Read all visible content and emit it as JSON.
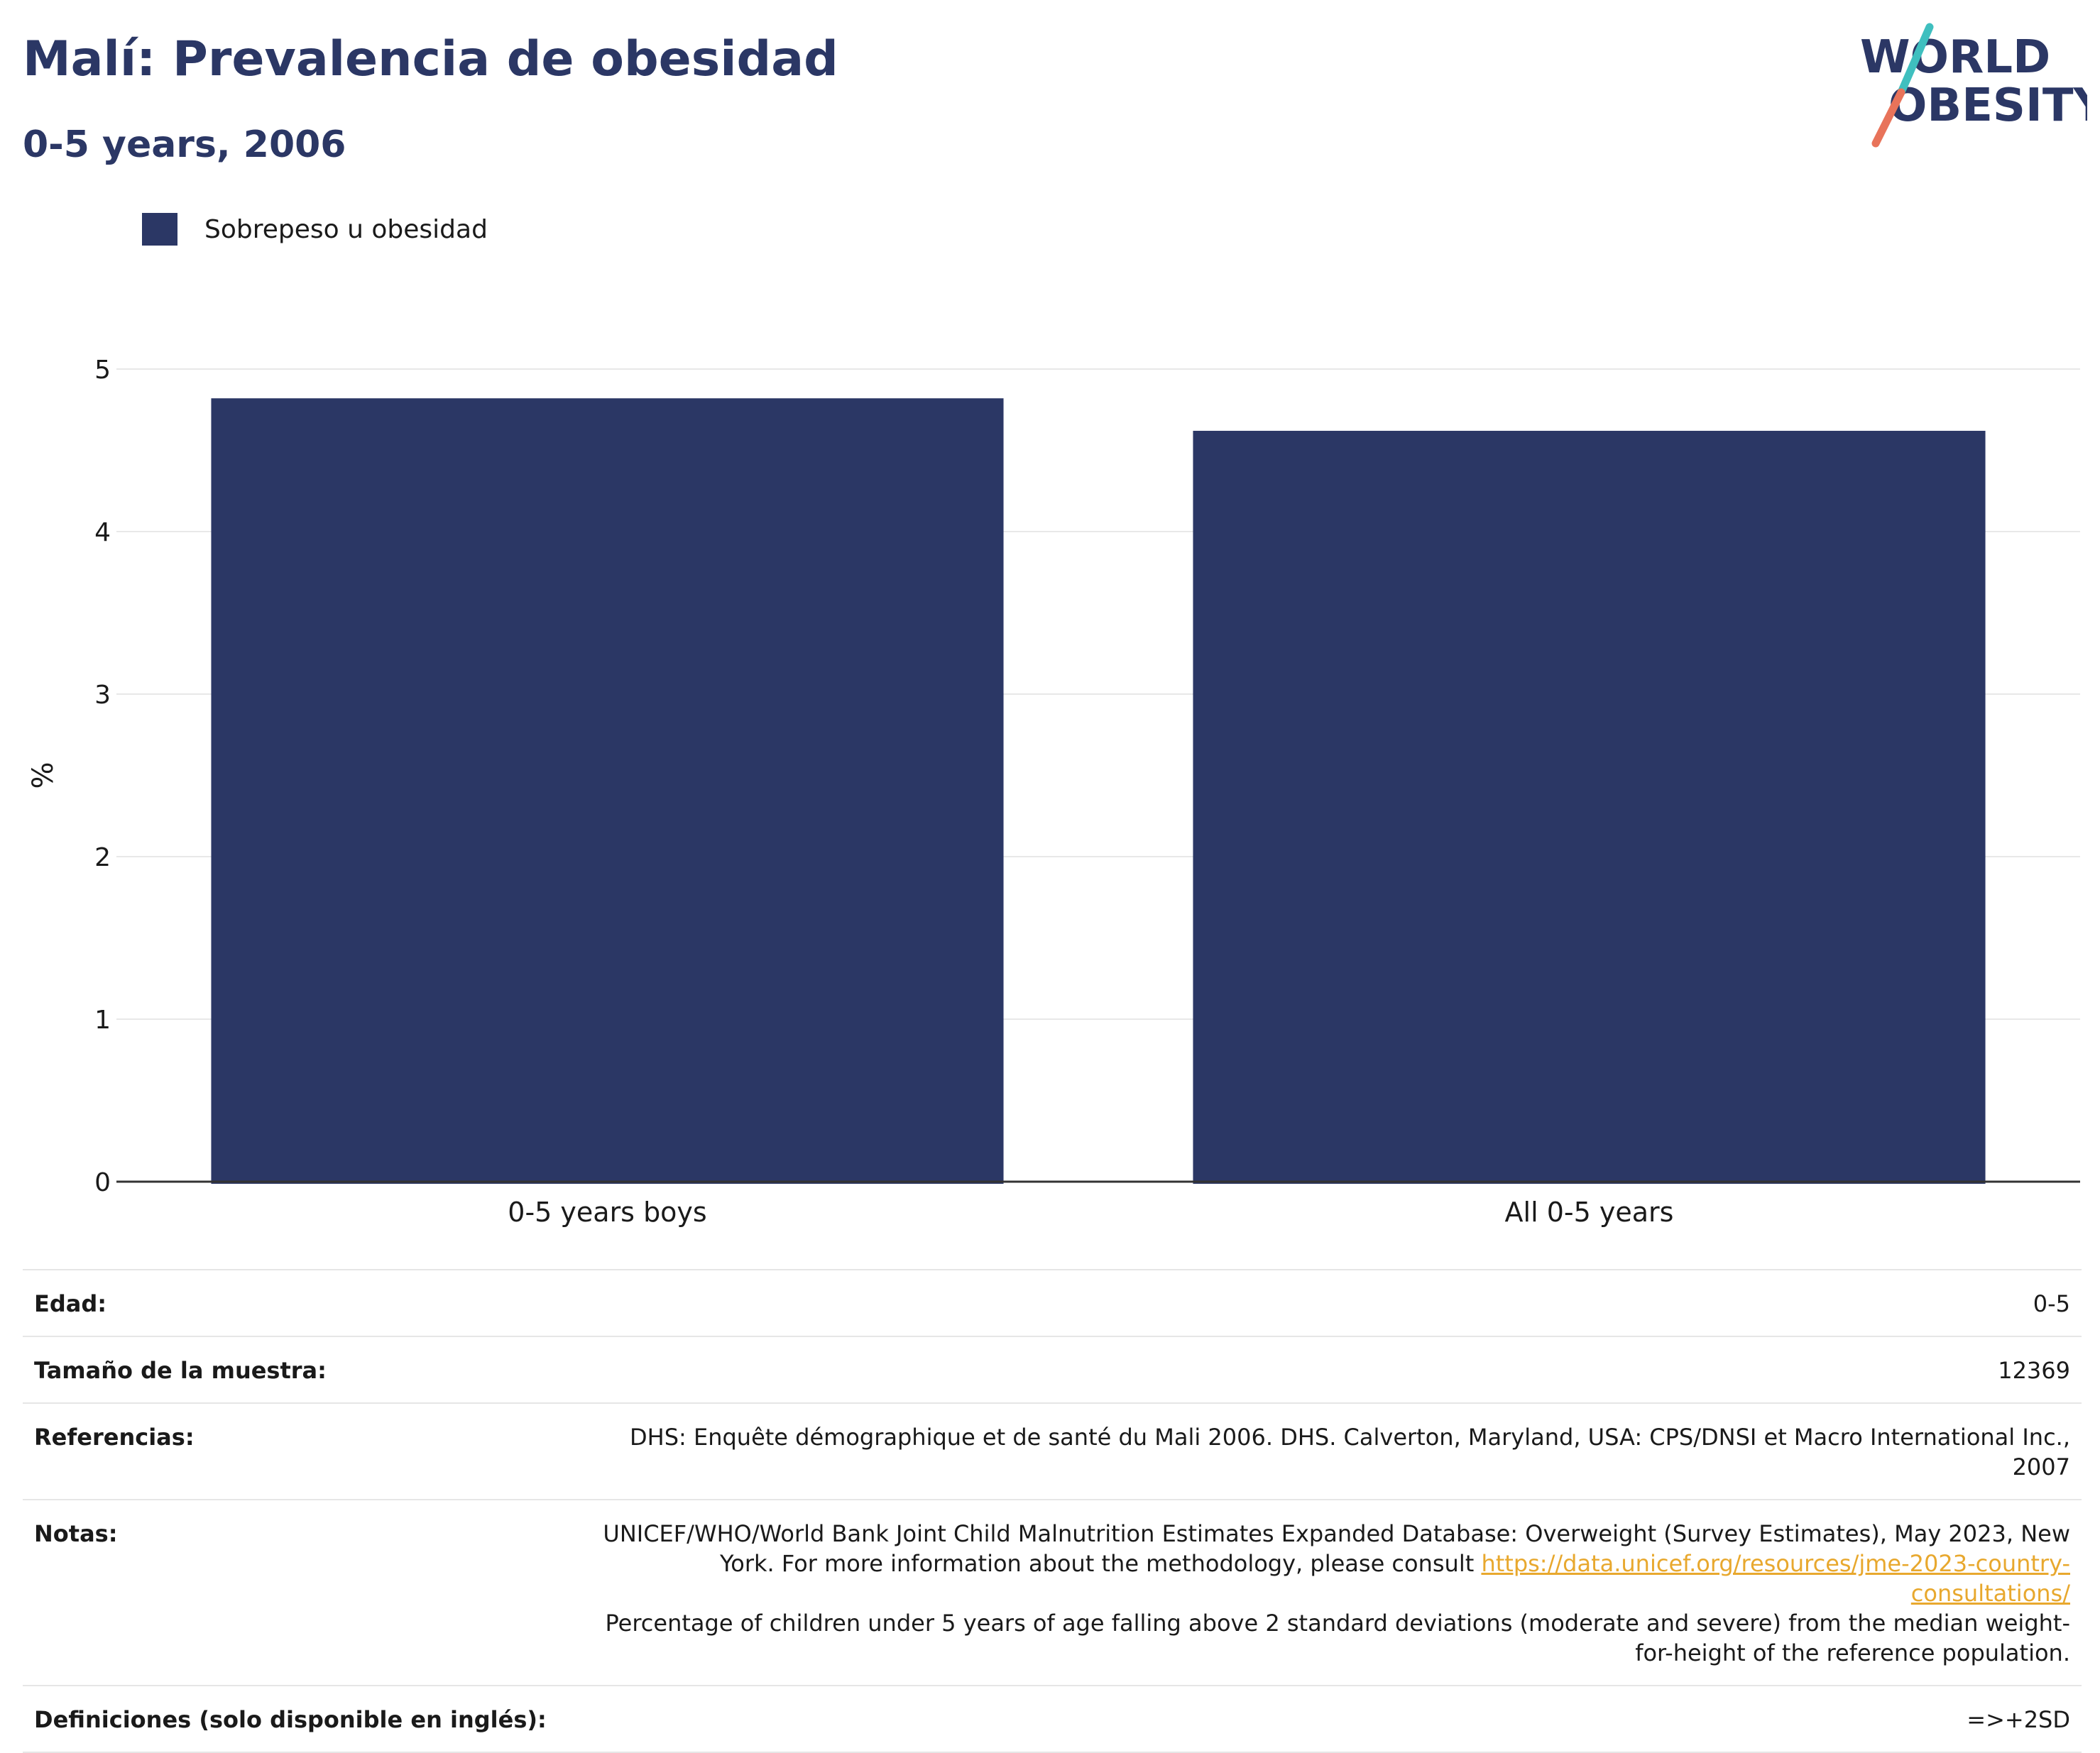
{
  "header": {
    "title": "Malí: Prevalencia de obesidad",
    "subtitle": "0-5 years, 2006"
  },
  "logo": {
    "line1": "WORLD",
    "line2": "OBESITY",
    "colors": {
      "text": "#2b3765",
      "slash_top": "#3fbfbf",
      "slash_bottom": "#e8735a"
    }
  },
  "legend": {
    "label": "Sobrepeso u obesidad",
    "color": "#2b3765"
  },
  "chart_data": {
    "type": "bar",
    "title": "Malí: Prevalencia de obesidad",
    "subtitle": "0-5 years, 2006",
    "categories": [
      "0-5 years boys",
      "All 0-5 years"
    ],
    "series": [
      {
        "name": "Sobrepeso u obesidad",
        "values": [
          4.82,
          4.62
        ],
        "color": "#2b3765"
      }
    ],
    "xlabel": "",
    "ylabel": "%",
    "ylim": [
      0,
      5
    ],
    "yticks": [
      0,
      1,
      2,
      3,
      4,
      5
    ],
    "grid": true,
    "legend_position": "top-left"
  },
  "info": {
    "rows": [
      {
        "label": "Edad:",
        "value": "0-5"
      },
      {
        "label": "Tamaño de la muestra:",
        "value": "12369"
      },
      {
        "label": "Referencias:",
        "value": "DHS: Enquête démographique et de santé du Mali 2006. DHS. Calverton, Maryland, USA: CPS/DNSI et Macro International Inc., 2007"
      }
    ],
    "notes": {
      "label": "Notas:",
      "text_before": "UNICEF/WHO/World Bank Joint Child Malnutrition Estimates Expanded Database: Overweight (Survey Estimates), May 2023, New York. For more information about the methodology, please consult ",
      "link": "https://data.unicef.org/resources/jme-2023-country-consultations/",
      "text_after": "Percentage of children under 5 years of age falling above 2 standard deviations (moderate and severe) from the median weight-for-height of the reference population."
    },
    "definitions": {
      "label": "Definiciones (solo disponible en inglés):",
      "value": "=>+2SD"
    }
  }
}
